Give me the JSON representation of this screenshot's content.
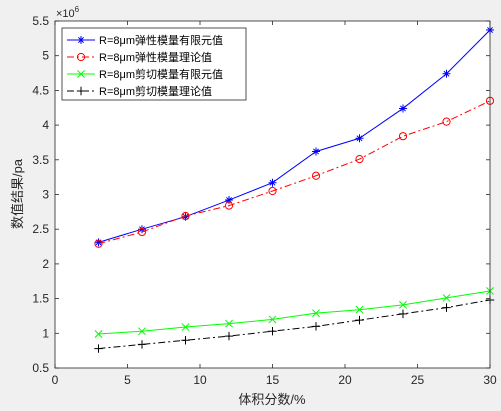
{
  "chart_data": {
    "type": "line",
    "xlabel": "体积分数/%",
    "ylabel": "数值结果/pa",
    "y_exponent_label": "×10",
    "y_exponent_power": "6",
    "xlim": [
      0,
      30
    ],
    "ylim": [
      0.5,
      5.5
    ],
    "xticks": [
      0,
      5,
      10,
      15,
      20,
      25,
      30
    ],
    "yticks": [
      0.5,
      1,
      1.5,
      2,
      2.5,
      3,
      3.5,
      4,
      4.5,
      5,
      5.5
    ],
    "x": [
      3,
      6,
      9,
      12,
      15,
      18,
      21,
      24,
      27,
      30
    ],
    "legend_position": "top-left",
    "grid": false,
    "series": [
      {
        "name": "R=8μm弹性模量有限元值",
        "color": "#0000ff",
        "line": "solid",
        "marker": "star",
        "values": [
          2.31,
          2.5,
          2.68,
          2.92,
          3.17,
          3.62,
          3.81,
          4.24,
          4.74,
          5.37
        ]
      },
      {
        "name": "R=8μm弹性模量理论值",
        "color": "#ff0000",
        "line": "dashdot",
        "marker": "circle",
        "values": [
          2.29,
          2.46,
          2.69,
          2.84,
          3.05,
          3.27,
          3.51,
          3.84,
          4.05,
          4.35
        ]
      },
      {
        "name": "R=8μm剪切模量有限元值",
        "color": "#00ff00",
        "line": "solid",
        "marker": "x",
        "values": [
          0.99,
          1.03,
          1.09,
          1.14,
          1.2,
          1.29,
          1.34,
          1.41,
          1.51,
          1.61
        ]
      },
      {
        "name": "R=8μm剪切模量理论值",
        "color": "#000000",
        "line": "dashdot",
        "marker": "plus",
        "values": [
          0.78,
          0.84,
          0.9,
          0.96,
          1.03,
          1.1,
          1.19,
          1.28,
          1.37,
          1.48
        ]
      }
    ]
  }
}
